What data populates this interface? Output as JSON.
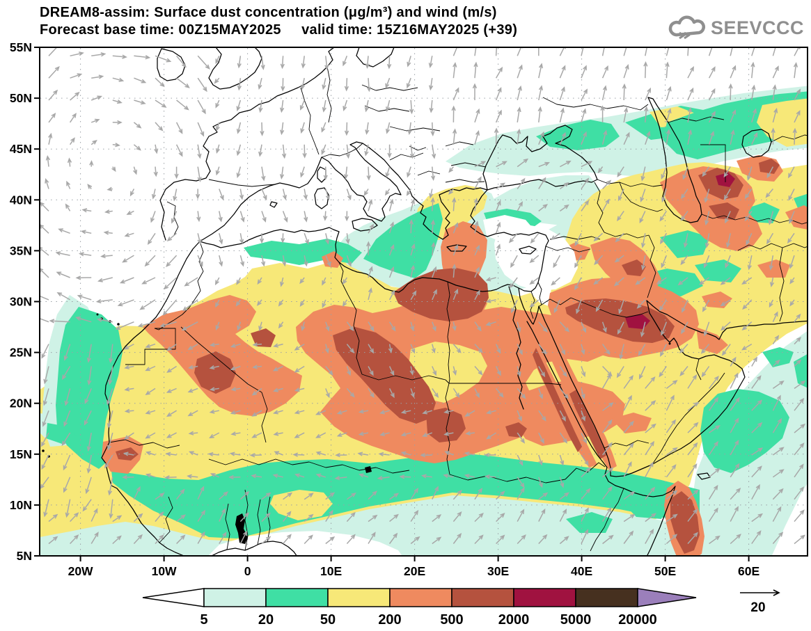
{
  "header": {
    "title_line1": "DREAM8-assim: Surface dust concentration (μg/m³) and wind (m/s)",
    "title_line2": "Forecast base time: 00Z15MAY2025     valid time: 15Z16MAY2025 (+39)",
    "logo_text": "SEEVCCC"
  },
  "axes": {
    "lat_labels": [
      "55N",
      "50N",
      "45N",
      "40N",
      "35N",
      "30N",
      "25N",
      "20N",
      "15N",
      "10N",
      "5N"
    ],
    "lat_values": [
      55,
      50,
      45,
      40,
      35,
      30,
      25,
      20,
      15,
      10,
      5
    ],
    "lon_labels": [
      "20W",
      "10W",
      "0",
      "10E",
      "20E",
      "30E",
      "40E",
      "50E",
      "60E"
    ],
    "lon_values": [
      -20,
      -10,
      0,
      10,
      20,
      30,
      40,
      50,
      60
    ]
  },
  "colorbar": {
    "levels": [
      "5",
      "20",
      "50",
      "200",
      "500",
      "2000",
      "5000",
      "20000"
    ],
    "segment_colors": [
      "#ffffff",
      "#cff2e6",
      "#3fdfa4",
      "#f7e878",
      "#ef8a5f",
      "#b5523e",
      "#a01240",
      "#46301f",
      "#9b7fbb"
    ]
  },
  "wind": {
    "reference_label": "20",
    "reference_speed_ms": 20,
    "arrow_color": "#a8a8a8"
  },
  "chart_data": {
    "type": "heatmap",
    "subtype": "geographic-filled-contour-map-with-wind-vectors",
    "model": "DREAM8-assim",
    "variable": "Surface dust concentration",
    "units": "μg/m³",
    "wind_units": "m/s",
    "forecast_base_time": "00Z15MAY2025",
    "valid_time": "15Z16MAY2025",
    "forecast_offset_hours": 39,
    "lon_range_deg": [
      -24.9,
      67.1
    ],
    "lat_range_deg": [
      5,
      55
    ],
    "contour_levels_ugm3": [
      5,
      20,
      50,
      200,
      500,
      2000,
      5000,
      20000
    ],
    "wind_reference_speed_ms": 20,
    "grid_lines": "dotted, every 10 deg longitude and 5 deg latitude",
    "legend_position": "bottom",
    "features": [
      "White (<5): North Atlantic, most of Europe, western Mediterranean, Black Sea, southern Gulf of Guinea, far SE corner of map",
      "Yellow (50-200): broad belt across North Africa 13N-30N, tropical Atlantic south of 15N, Greece/Aegean, Levant, Arabian Peninsula, Iran, Caucasus-Caspian region",
      "Orange (200-500): Mauritania-Mali, central Sahara (Algeria-Libya-Niger-Chad), Egypt-Sudan, northern Saudi Arabia, Mesopotamia, Crete-Libya plume, Caucasus/NW Iran, Somali coast",
      "Dark red (500-2000): Mali core, Hoggar-Air-Bodele band, NE Libya / NW Egypt, northern Saudi Arabia, both Red Sea coasts, Somalia, Azerbaijan-Caspian cores",
      "Maroon (2000-5000): small cores near Caspian and in northern Saudi Arabia",
      "Cyan/green fringes (5-50): NW African Atlantic coast, Sahel margin, Gulf of Guinea, Ionian and eastern Mediterranean, Anatolia, north of Black Sea, Caspian area, Arabian Sea",
      "Winds: clockwise gyre over NE Atlantic; northward flow over eastern Europe and Aegean-Balkans; southward flow over Arabia and Caspian; SW monsoon onshore at Gulf of Guinea; NE onshore flow over Arabian Sea"
    ]
  }
}
